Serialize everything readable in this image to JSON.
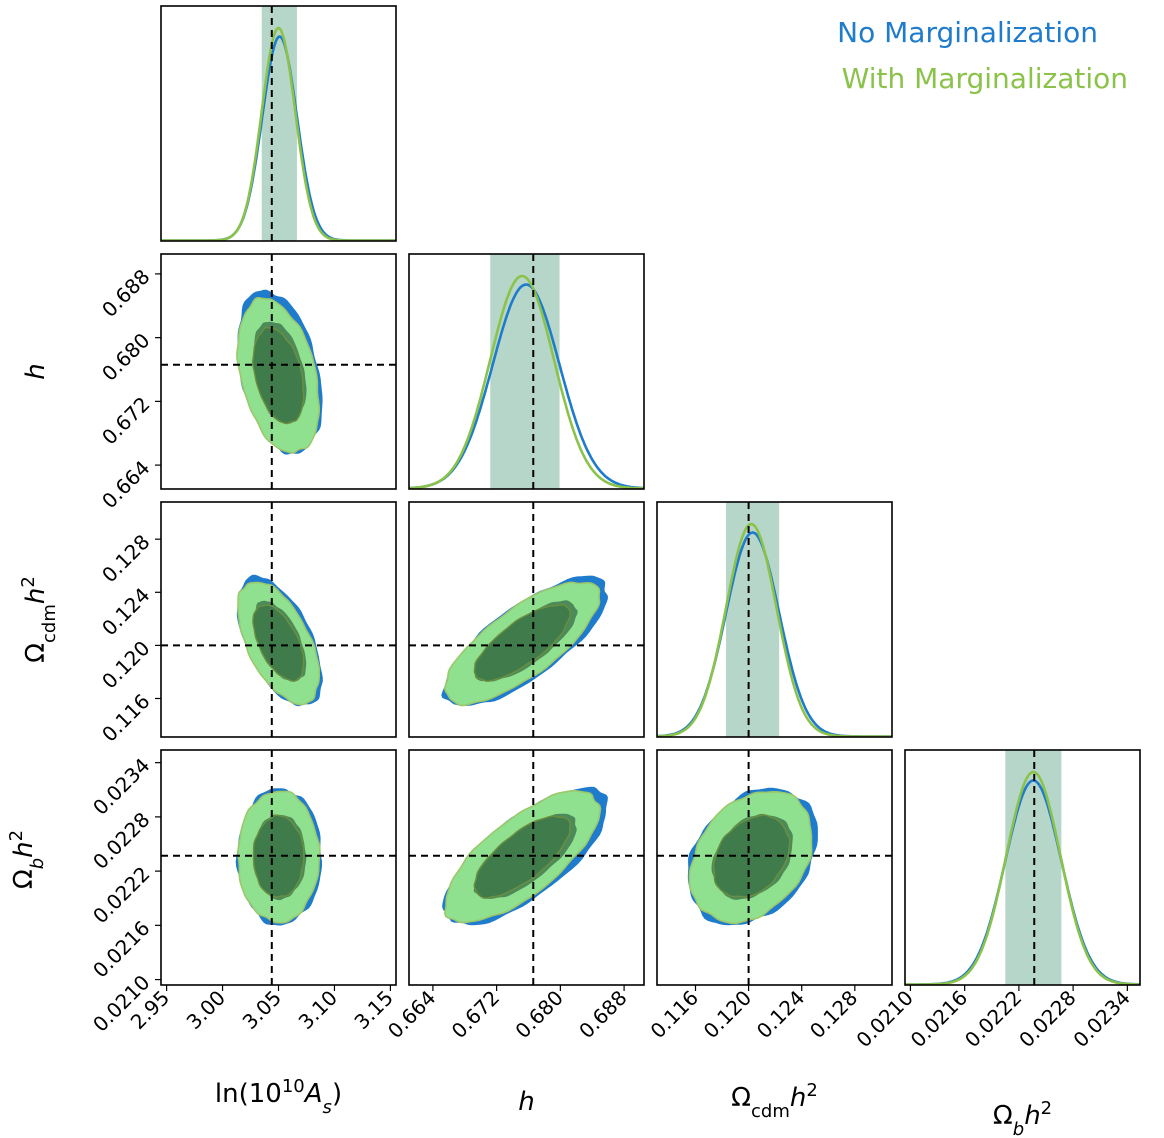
{
  "chart_data": {
    "type": "corner",
    "parameters": [
      {
        "key": "lnAs",
        "label": "ln(10^10 A_s)",
        "range": [
          2.945,
          3.155
        ],
        "ticks": [
          "2.95",
          "3.00",
          "3.05",
          "3.10",
          "3.15"
        ],
        "truth": 3.044
      },
      {
        "key": "h",
        "label": "h",
        "range": [
          0.661,
          0.6905
        ],
        "ticks": [
          "0.664",
          "0.672",
          "0.680",
          "0.688"
        ],
        "truth": 0.6766
      },
      {
        "key": "omcdm",
        "label": "Ω_cdm h^2",
        "range": [
          0.1131,
          0.1308
        ],
        "ticks": [
          "0.116",
          "0.120",
          "0.124",
          "0.128"
        ],
        "truth": 0.12
      },
      {
        "key": "ombh2",
        "label": "Ω_b h^2",
        "range": [
          0.02094,
          0.02354
        ],
        "ticks": [
          "0.0210",
          "0.0216",
          "0.0222",
          "0.0228",
          "0.0234"
        ],
        "truth": 0.02237
      }
    ],
    "series": [
      {
        "name": "No Marginalization",
        "color": "#1f7bcc",
        "means": [
          3.051,
          0.6757,
          0.1203,
          0.02236
        ],
        "sigmas": [
          0.0155,
          0.0042,
          0.002,
          0.00031
        ]
      },
      {
        "name": "With Marginalization",
        "color": "#8bc34a",
        "means": [
          3.05,
          0.6752,
          0.1202,
          0.02236
        ],
        "sigmas": [
          0.015,
          0.004,
          0.0019,
          0.0003
        ]
      }
    ],
    "correlations": [
      {
        "pair": [
          "h",
          "lnAs"
        ],
        "rho": -0.35
      },
      {
        "pair": [
          "omcdm",
          "lnAs"
        ],
        "rho": -0.55
      },
      {
        "pair": [
          "omcdm",
          "h"
        ],
        "rho": 0.75
      },
      {
        "pair": [
          "ombh2",
          "lnAs"
        ],
        "rho": 0.0
      },
      {
        "pair": [
          "ombh2",
          "h"
        ],
        "rho": 0.72
      },
      {
        "pair": [
          "ombh2",
          "omcdm"
        ],
        "rho": 0.3
      }
    ],
    "contour_levels": [
      "68%",
      "95%"
    ],
    "legend_position": "top-right",
    "colors": {
      "inner_fill": "#3f7a4c",
      "outer_fill": "#8fe08f",
      "shade_1d": "#a9cfc0"
    }
  }
}
